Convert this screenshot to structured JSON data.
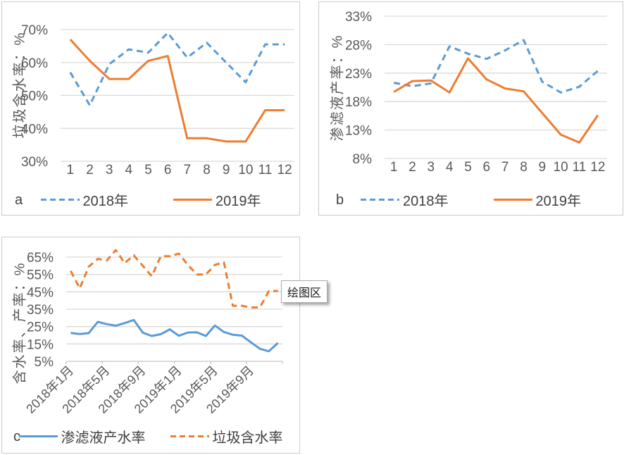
{
  "colors": {
    "series_blue": "#5B9BD5",
    "series_orange": "#ED7D31",
    "gridline": "#D9D9D9",
    "axis_line": "#C9C9C9",
    "axis_text": "#595959",
    "legend_text": "#404040"
  },
  "tooltip": {
    "text": "绘图区"
  },
  "chart_data": [
    {
      "id": "a",
      "panel_label": "a",
      "type": "line",
      "ylabel": "垃圾含水率：%",
      "xlabel": "",
      "grid": true,
      "legend_position": "bottom",
      "ylim": [
        30,
        70
      ],
      "yticks": [
        30,
        40,
        50,
        60,
        70
      ],
      "ytick_labels": [
        "30%",
        "40%",
        "50%",
        "60%",
        "70%"
      ],
      "categories": [
        "1",
        "2",
        "3",
        "4",
        "5",
        "6",
        "7",
        "8",
        "9",
        "10",
        "11",
        "12"
      ],
      "series": [
        {
          "name": "2018年",
          "color": "#5B9BD5",
          "dashed": true,
          "values": [
            57,
            47,
            59.5,
            64,
            63,
            69,
            61.5,
            66,
            60,
            54,
            65.5,
            65.5
          ]
        },
        {
          "name": "2019年",
          "color": "#ED7D31",
          "dashed": false,
          "values": [
            67,
            60.5,
            55,
            55,
            60.5,
            62,
            37,
            37,
            36,
            36,
            45.5,
            45.5
          ]
        }
      ]
    },
    {
      "id": "b",
      "panel_label": "b",
      "type": "line",
      "ylabel": "渗滤液产率：%",
      "xlabel": "",
      "grid": true,
      "legend_position": "bottom",
      "ylim": [
        8,
        33
      ],
      "yticks": [
        8,
        13,
        18,
        23,
        28,
        33
      ],
      "ytick_labels": [
        "8%",
        "13%",
        "18%",
        "23%",
        "28%",
        "33%"
      ],
      "categories": [
        "1",
        "2",
        "3",
        "4",
        "5",
        "6",
        "7",
        "8",
        "9",
        "10",
        "11",
        "12"
      ],
      "series": [
        {
          "name": "2018年",
          "color": "#5B9BD5",
          "dashed": true,
          "values": [
            21.3,
            20.7,
            21.2,
            27.7,
            26.4,
            25.5,
            27,
            28.8,
            21.5,
            19.6,
            20.6,
            23.4
          ]
        },
        {
          "name": "2019年",
          "color": "#ED7D31",
          "dashed": false,
          "values": [
            19.7,
            21.6,
            21.7,
            19.6,
            25.6,
            21.9,
            20.3,
            19.8,
            16,
            12.2,
            10.8,
            15.6
          ]
        }
      ]
    },
    {
      "id": "c",
      "panel_label": "c",
      "type": "line",
      "ylabel": "含水率、产率：%",
      "xlabel": "",
      "grid": true,
      "legend_position": "bottom",
      "ylim": [
        5,
        65
      ],
      "yticks": [
        5,
        15,
        25,
        35,
        45,
        55,
        65
      ],
      "ytick_labels": [
        "5%",
        "15%",
        "25%",
        "35%",
        "45%",
        "55%",
        "65%"
      ],
      "n_points": 24,
      "x_tick_labels": [
        "2018年1月",
        "2018年5月",
        "2018年9月",
        "2019年1月",
        "2019年5月",
        "2019年9月"
      ],
      "x_tick_positions": [
        0,
        4,
        8,
        12,
        16,
        20
      ],
      "series": [
        {
          "name": "渗滤液产水率",
          "color": "#5B9BD5",
          "dashed": false,
          "values": [
            21.3,
            20.7,
            21.2,
            27.7,
            26.4,
            25.5,
            27,
            28.8,
            21.5,
            19.6,
            20.6,
            23.4,
            19.7,
            21.6,
            21.7,
            19.6,
            25.6,
            21.9,
            20.3,
            19.8,
            16,
            12.2,
            10.8,
            15.6
          ]
        },
        {
          "name": "垃圾含水率",
          "color": "#ED7D31",
          "dashed": true,
          "values": [
            57,
            47,
            59.5,
            64,
            63,
            69,
            61.5,
            66,
            60,
            54,
            65.5,
            65.5,
            67,
            60.5,
            55,
            55,
            60.5,
            62,
            37,
            37,
            36,
            36,
            45.5,
            45.5
          ]
        }
      ]
    }
  ]
}
